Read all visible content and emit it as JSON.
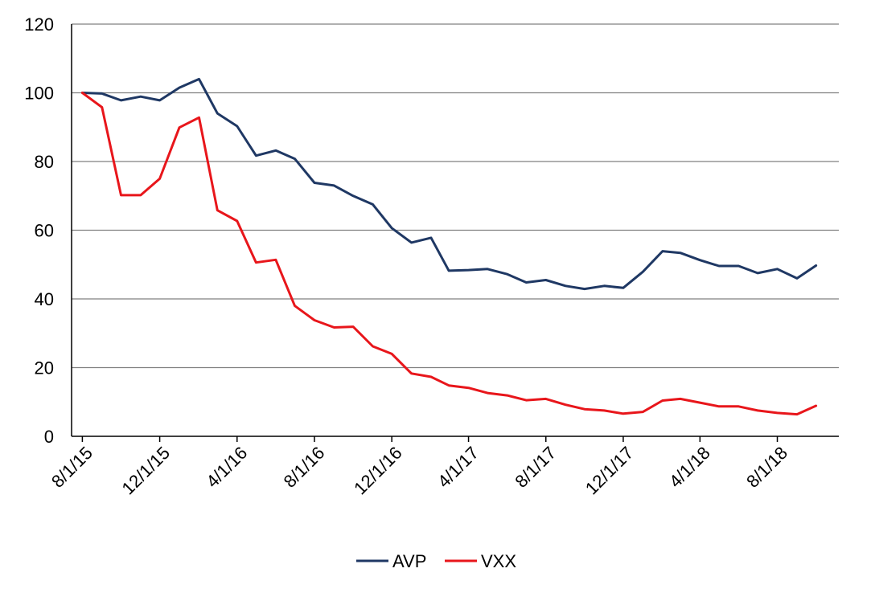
{
  "chart_data": {
    "type": "line",
    "title": "",
    "xlabel": "",
    "ylabel": "",
    "ylim": [
      0,
      120
    ],
    "yticks": [
      0,
      20,
      40,
      60,
      80,
      100,
      120
    ],
    "grid": true,
    "legend_position": "bottom",
    "x_tick_labels": [
      "8/1/15",
      "12/1/15",
      "4/1/16",
      "8/1/16",
      "12/1/16",
      "4/1/17",
      "8/1/17",
      "12/1/17",
      "4/1/18",
      "8/1/18"
    ],
    "x_tick_dates": [
      "2015-08-01",
      "2015-12-01",
      "2016-04-01",
      "2016-08-01",
      "2016-12-01",
      "2017-04-01",
      "2017-08-01",
      "2017-12-01",
      "2018-04-01",
      "2018-08-01"
    ],
    "x": [
      "2015-08-01",
      "2015-09-01",
      "2015-10-01",
      "2015-11-01",
      "2015-12-01",
      "2016-01-01",
      "2016-02-01",
      "2016-03-01",
      "2016-04-01",
      "2016-05-01",
      "2016-06-01",
      "2016-07-01",
      "2016-08-01",
      "2016-09-01",
      "2016-10-01",
      "2016-11-01",
      "2016-12-01",
      "2017-01-01",
      "2017-02-01",
      "2017-03-01",
      "2017-04-01",
      "2017-05-01",
      "2017-06-01",
      "2017-07-01",
      "2017-08-01",
      "2017-09-01",
      "2017-10-01",
      "2017-11-01",
      "2017-12-01",
      "2018-01-01",
      "2018-02-01",
      "2018-03-01",
      "2018-04-01",
      "2018-05-01",
      "2018-06-01",
      "2018-07-01",
      "2018-08-01",
      "2018-09-01",
      "2018-10-01"
    ],
    "series": [
      {
        "name": "AVP",
        "color": "#1f3864",
        "values": [
          100,
          99.8,
          97.8,
          98.9,
          97.8,
          101.5,
          104,
          94,
          90.3,
          81.7,
          83.2,
          80.8,
          73.8,
          73.0,
          70.0,
          67.5,
          60.6,
          56.4,
          57.8,
          48.2,
          48.4,
          48.7,
          47.2,
          44.8,
          45.5,
          43.8,
          42.9,
          43.8,
          43.2,
          47.9,
          53.9,
          53.4,
          51.3,
          49.6,
          49.6,
          47.5,
          48.7,
          46.0,
          49.7
        ]
      },
      {
        "name": "VXX",
        "color": "#e8161b",
        "values": [
          100,
          95.8,
          70.2,
          70.2,
          75.0,
          89.9,
          92.8,
          65.8,
          62.7,
          50.6,
          51.4,
          38.0,
          33.8,
          31.7,
          31.9,
          26.2,
          24.0,
          18.3,
          17.3,
          14.8,
          14.1,
          12.6,
          11.9,
          10.5,
          10.9,
          9.2,
          7.9,
          7.5,
          6.6,
          7.1,
          10.4,
          10.9,
          9.8,
          8.7,
          8.7,
          7.5,
          6.8,
          6.4,
          8.9
        ]
      }
    ]
  }
}
